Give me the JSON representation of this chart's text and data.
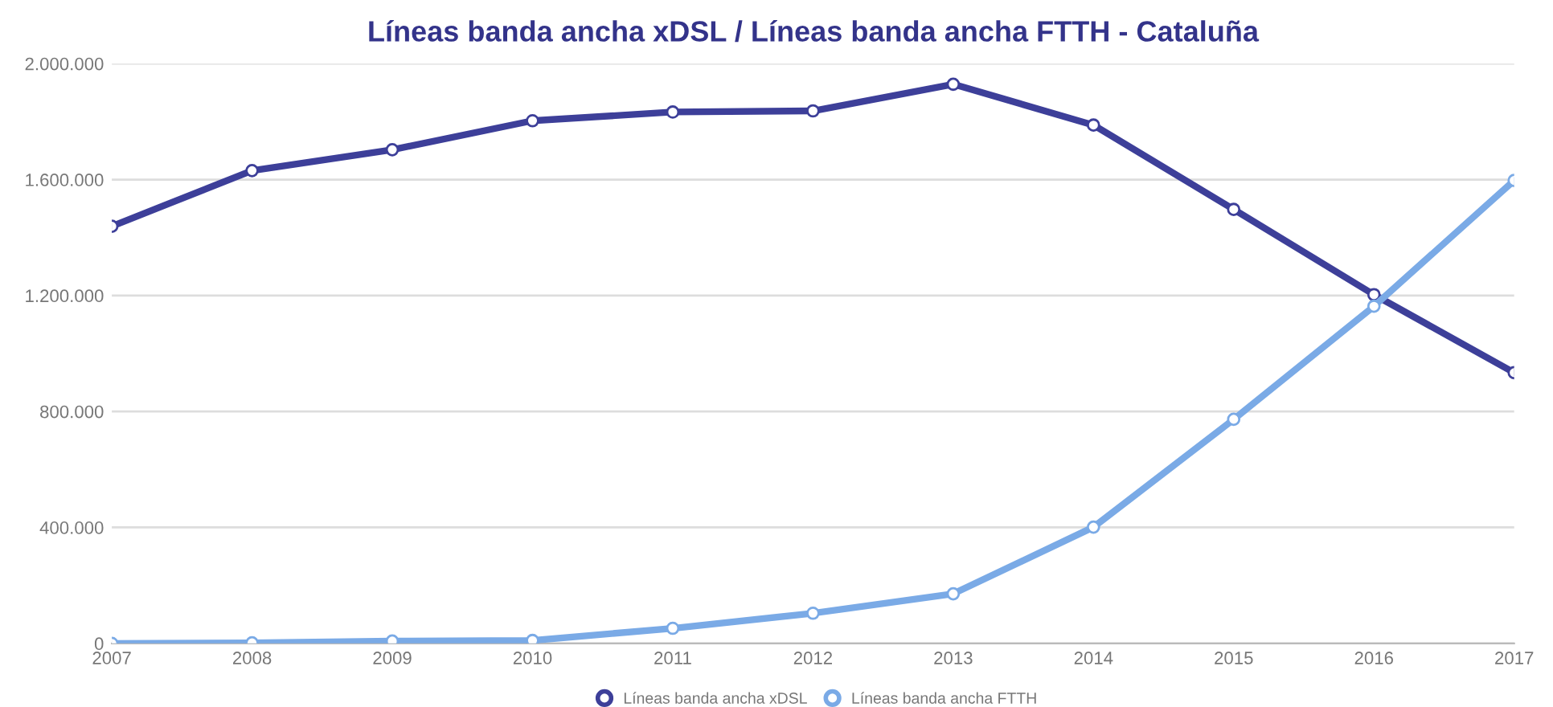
{
  "chart_data": {
    "type": "line",
    "title": "Líneas banda ancha xDSL / Líneas banda ancha FTTH - Cataluña",
    "categories": [
      "2007",
      "2008",
      "2009",
      "2010",
      "2011",
      "2012",
      "2013",
      "2014",
      "2015",
      "2016",
      "2017"
    ],
    "series": [
      {
        "name": "Líneas banda ancha xDSL",
        "color": "#3d3f99",
        "values": [
          1439000,
          1631000,
          1703000,
          1803000,
          1833000,
          1837000,
          1929000,
          1788000,
          1497000,
          1203000,
          934000
        ]
      },
      {
        "name": "Líneas banda ancha FTTH",
        "color": "#7aaae6",
        "values": [
          0,
          2000,
          8000,
          10000,
          52000,
          104000,
          171000,
          401000,
          773000,
          1163000,
          1597000
        ]
      }
    ],
    "ylim": [
      0,
      2000000
    ],
    "yticks": [
      {
        "value": 0,
        "label": "0"
      },
      {
        "value": 400000,
        "label": "400.000"
      },
      {
        "value": 800000,
        "label": "800.000"
      },
      {
        "value": 1200000,
        "label": "1.200.000"
      },
      {
        "value": 1600000,
        "label": "1.600.000"
      },
      {
        "value": 2000000,
        "label": "2.000.000"
      }
    ],
    "grid": "y",
    "legend": "bottom",
    "marker": "circle",
    "line_style": "solid"
  }
}
